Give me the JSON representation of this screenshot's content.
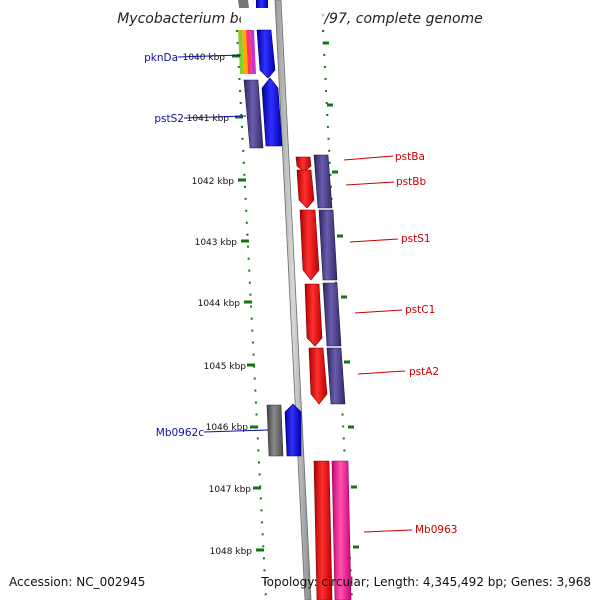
{
  "title": "Mycobacterium bovis AF2122/97, complete genome",
  "footer": {
    "accession": "Accession: NC_002945",
    "topology": "Topology: circular; Length: 4,345,492 bp; Genes: 3,968"
  },
  "ticks": [
    "1040 kbp",
    "1041 kbp",
    "1042 kbp",
    "1043 kbp",
    "1044 kbp",
    "1045 kbp",
    "1046 kbp",
    "1047 kbp",
    "1048 kbp"
  ],
  "genes_left": [
    "pknDa",
    "pstS2",
    "Mb0962c"
  ],
  "genes_right": [
    "pstBa",
    "pstBb",
    "pstS1",
    "pstC1",
    "pstA2",
    "Mb0963"
  ],
  "colors": {
    "forward_gene": "#ee0000",
    "reverse_gene": "#0000ee",
    "cog_purple": "#4a3d8a",
    "cog_gray": "#6b6b6b",
    "cog_pink": "#ff2a9a",
    "backbone": "#8c8c8c",
    "tick_mark": "#117711",
    "left_label": "#1010a0",
    "right_label": "#cc0000"
  }
}
